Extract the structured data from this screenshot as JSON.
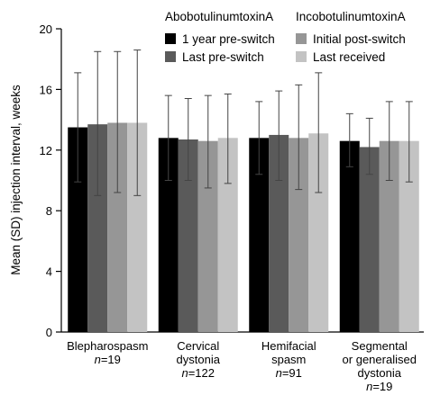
{
  "chart_data": {
    "type": "bar",
    "title": "",
    "xlabel": "",
    "ylabel": "Mean (SD) injection interval, weeks",
    "ylim": [
      0,
      20
    ],
    "yticks": [
      0,
      4,
      8,
      12,
      16,
      20
    ],
    "grid": false,
    "error_bars": "SD",
    "legend_groups": [
      {
        "title": "AbobotulinumtoxinA",
        "entries": [
          "1 year pre-switch",
          "Last pre-switch"
        ]
      },
      {
        "title": "IncobotulinumtoxinA",
        "entries": [
          "Initial post-switch",
          "Last received"
        ]
      }
    ],
    "categories": [
      {
        "lines": [
          "Blepharospasm"
        ],
        "n_prefix": "n",
        "n_value": "=19"
      },
      {
        "lines": [
          "Cervical",
          "dystonia"
        ],
        "n_prefix": "n",
        "n_value": "=122"
      },
      {
        "lines": [
          "Hemifacial",
          "spasm"
        ],
        "n_prefix": "n",
        "n_value": "=91"
      },
      {
        "lines": [
          "Segmental",
          "or generalised",
          "dystonia"
        ],
        "n_prefix": "n",
        "n_value": "=19"
      }
    ],
    "series": [
      {
        "name": "1 year pre-switch",
        "color": "#000000",
        "values": [
          13.5,
          12.8,
          12.8,
          12.6
        ],
        "sd_low": [
          9.9,
          10.0,
          10.4,
          10.9
        ],
        "sd_high": [
          17.1,
          15.6,
          15.2,
          14.4
        ]
      },
      {
        "name": "Last pre-switch",
        "color": "#5a5a5a",
        "values": [
          13.7,
          12.7,
          13.0,
          12.2
        ],
        "sd_low": [
          9.0,
          10.0,
          10.0,
          10.4
        ],
        "sd_high": [
          18.5,
          15.4,
          15.9,
          14.1
        ]
      },
      {
        "name": "Initial post-switch",
        "color": "#969696",
        "values": [
          13.8,
          12.6,
          12.8,
          12.6
        ],
        "sd_low": [
          9.2,
          9.5,
          9.4,
          10.0
        ],
        "sd_high": [
          18.5,
          15.6,
          16.3,
          15.2
        ]
      },
      {
        "name": "Last received",
        "color": "#c3c3c3",
        "values": [
          13.8,
          12.8,
          13.1,
          12.6
        ],
        "sd_low": [
          9.0,
          9.8,
          9.2,
          9.9
        ],
        "sd_high": [
          18.6,
          15.7,
          17.1,
          15.2
        ]
      }
    ]
  }
}
